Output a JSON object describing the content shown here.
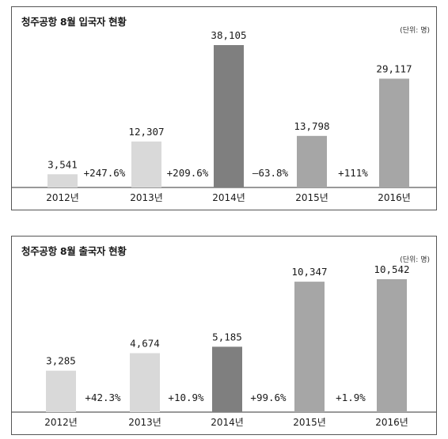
{
  "chart_data": [
    {
      "type": "bar",
      "title": "청주공항 8월 입국자 현황",
      "unit": "(단위: 명)",
      "categories": [
        "2012년",
        "2013년",
        "2014년",
        "2015년",
        "2016년"
      ],
      "values": [
        3541,
        12307,
        38105,
        13798,
        29117
      ],
      "value_labels": [
        "3,541",
        "12,307",
        "38,105",
        "13,798",
        "29,117"
      ],
      "growth_labels": [
        "+247.6%",
        "+209.6%",
        "–63.8%",
        "+111%"
      ],
      "bar_colors": [
        "#d9d9d9",
        "#d9d9d9",
        "#7f7f7f",
        "#a6a6a6",
        "#a6a6a6"
      ],
      "ylim": [
        0,
        38105
      ]
    },
    {
      "type": "bar",
      "title": "청주공항 8월 출국자 현황",
      "unit": "(단위: 명)",
      "categories": [
        "2012년",
        "2013년",
        "2014년",
        "2015년",
        "2016년"
      ],
      "values": [
        3285,
        4674,
        5185,
        10347,
        10542
      ],
      "value_labels": [
        "3,285",
        "4,674",
        "5,185",
        "10,347",
        "10,542"
      ],
      "growth_labels": [
        "+42.3%",
        "+10.9%",
        "+99.6%",
        "+1.9%"
      ],
      "bar_colors": [
        "#d9d9d9",
        "#d9d9d9",
        "#7f7f7f",
        "#a6a6a6",
        "#a6a6a6"
      ],
      "ylim": [
        0,
        10542
      ]
    }
  ]
}
